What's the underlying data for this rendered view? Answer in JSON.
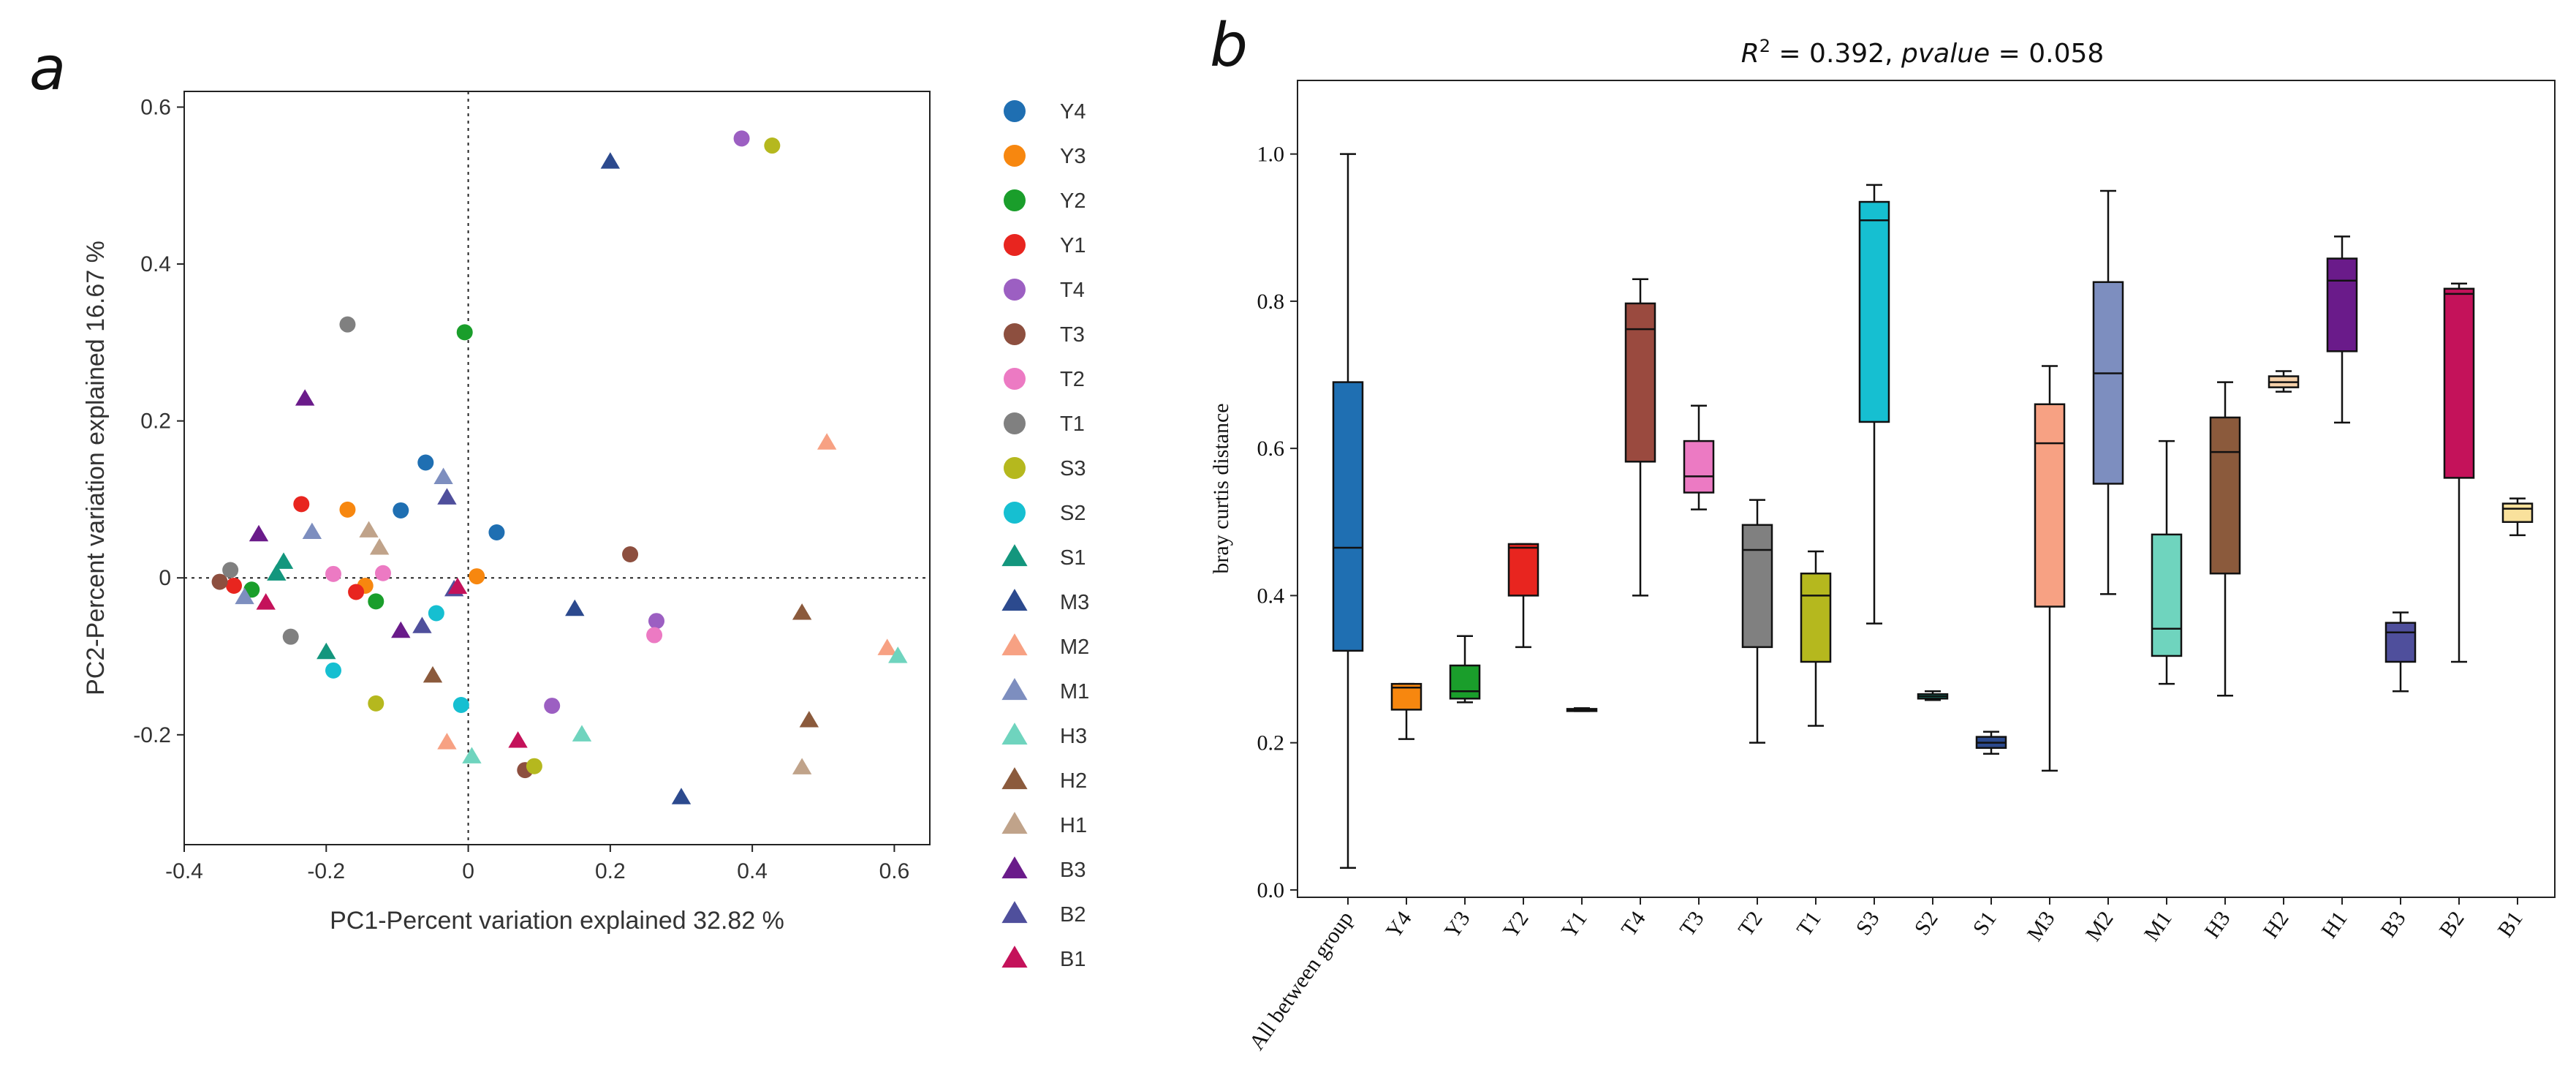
{
  "panel_labels": {
    "a": "a",
    "b": "b"
  },
  "chart_data": [
    {
      "type": "scatter",
      "panel": "a",
      "xlabel": "PC1-Percent variation explained 32.82 %",
      "ylabel": "PC2-Percent variation explained 16.67 %",
      "xlim": [
        -0.4,
        0.65
      ],
      "ylim": [
        -0.34,
        0.62
      ],
      "xticks": [
        "-0.4",
        "-0.2",
        "0",
        "0.2",
        "0.4",
        "0.6"
      ],
      "xtick_values": [
        -0.4,
        -0.2,
        0,
        0.2,
        0.4,
        0.6
      ],
      "yticks": [
        "-0.2",
        "0",
        "0.2",
        "0.4",
        "0.6"
      ],
      "ytick_values": [
        -0.2,
        0,
        0.2,
        0.4,
        0.6
      ],
      "reference_lines": {
        "x": 0,
        "y": 0,
        "style": "dotted"
      },
      "legend_position": "right",
      "series": [
        {
          "name": "Y4",
          "marker": "circle",
          "color": "#1f6fb2",
          "points": [
            [
              -0.06,
              0.147
            ],
            [
              -0.095,
              0.086
            ],
            [
              0.04,
              0.058
            ]
          ]
        },
        {
          "name": "Y3",
          "marker": "circle",
          "color": "#f7870f",
          "points": [
            [
              -0.17,
              0.087
            ],
            [
              -0.145,
              -0.01
            ],
            [
              0.012,
              0.002
            ]
          ]
        },
        {
          "name": "Y2",
          "marker": "circle",
          "color": "#1a9e2b",
          "points": [
            [
              -0.005,
              0.313
            ],
            [
              -0.305,
              -0.015
            ],
            [
              -0.13,
              -0.03
            ]
          ]
        },
        {
          "name": "Y1",
          "marker": "circle",
          "color": "#e8251f",
          "points": [
            [
              -0.235,
              0.094
            ],
            [
              -0.33,
              -0.01
            ],
            [
              -0.158,
              -0.018
            ]
          ]
        },
        {
          "name": "T4",
          "marker": "circle",
          "color": "#9c5fc2",
          "points": [
            [
              0.385,
              0.56
            ],
            [
              0.118,
              -0.163
            ],
            [
              0.265,
              -0.055
            ]
          ]
        },
        {
          "name": "T3",
          "marker": "circle",
          "color": "#8d4f3f",
          "points": [
            [
              0.228,
              0.03
            ],
            [
              -0.35,
              -0.005
            ],
            [
              0.08,
              -0.245
            ]
          ]
        },
        {
          "name": "T2",
          "marker": "circle",
          "color": "#ec7ac3",
          "points": [
            [
              -0.19,
              0.005
            ],
            [
              -0.12,
              0.006
            ],
            [
              0.262,
              -0.073
            ]
          ]
        },
        {
          "name": "T1",
          "marker": "circle",
          "color": "#808080",
          "points": [
            [
              -0.17,
              0.323
            ],
            [
              -0.335,
              0.01
            ],
            [
              -0.25,
              -0.075
            ]
          ]
        },
        {
          "name": "S3",
          "marker": "circle",
          "color": "#b5b81e",
          "points": [
            [
              0.428,
              0.551
            ],
            [
              0.093,
              -0.24
            ],
            [
              -0.13,
              -0.16
            ]
          ]
        },
        {
          "name": "S2",
          "marker": "circle",
          "color": "#16bfd1",
          "points": [
            [
              -0.045,
              -0.045
            ],
            [
              -0.19,
              -0.118
            ],
            [
              -0.01,
              -0.162
            ]
          ]
        },
        {
          "name": "S1",
          "marker": "triangle",
          "color": "#13967d",
          "points": [
            [
              -0.26,
              0.02
            ],
            [
              -0.27,
              0.005
            ],
            [
              -0.2,
              -0.095
            ]
          ]
        },
        {
          "name": "M3",
          "marker": "triangle",
          "color": "#2c4a8e",
          "points": [
            [
              0.2,
              0.53
            ],
            [
              0.3,
              -0.28
            ],
            [
              0.15,
              -0.04
            ]
          ]
        },
        {
          "name": "M2",
          "marker": "triangle",
          "color": "#f7a183",
          "points": [
            [
              0.505,
              0.172
            ],
            [
              -0.03,
              -0.21
            ],
            [
              0.59,
              -0.09
            ]
          ]
        },
        {
          "name": "M1",
          "marker": "triangle",
          "color": "#7d8ebf",
          "points": [
            [
              -0.035,
              0.128
            ],
            [
              -0.315,
              -0.025
            ],
            [
              -0.22,
              0.058
            ]
          ]
        },
        {
          "name": "H3",
          "marker": "triangle",
          "color": "#6fd4be",
          "points": [
            [
              0.605,
              -0.1
            ],
            [
              0.16,
              -0.2
            ],
            [
              0.005,
              -0.228
            ]
          ]
        },
        {
          "name": "H2",
          "marker": "triangle",
          "color": "#8b5a3c",
          "points": [
            [
              0.47,
              -0.045
            ],
            [
              0.48,
              -0.182
            ],
            [
              -0.05,
              -0.125
            ]
          ]
        },
        {
          "name": "H1",
          "marker": "triangle",
          "color": "#c0a38a",
          "points": [
            [
              -0.14,
              0.06
            ],
            [
              -0.125,
              0.038
            ],
            [
              0.47,
              -0.242
            ]
          ]
        },
        {
          "name": "B3",
          "marker": "triangle",
          "color": "#6a1b8a",
          "points": [
            [
              -0.23,
              0.228
            ],
            [
              -0.295,
              0.055
            ],
            [
              -0.095,
              -0.068
            ]
          ]
        },
        {
          "name": "B2",
          "marker": "triangle",
          "color": "#4f4f9c",
          "points": [
            [
              -0.03,
              0.102
            ],
            [
              -0.065,
              -0.062
            ],
            [
              -0.02,
              -0.015
            ]
          ]
        },
        {
          "name": "B1",
          "marker": "triangle",
          "color": "#c4125a",
          "points": [
            [
              -0.285,
              -0.032
            ],
            [
              -0.015,
              -0.012
            ],
            [
              0.07,
              -0.208
            ]
          ]
        }
      ]
    },
    {
      "type": "box",
      "panel": "b",
      "title": "R² = 0.392, pvalue = 0.058",
      "title_parts": {
        "r": "R",
        "sup": "2",
        "rest": " = 0.392, ",
        "pvalue": "pvalue",
        "tail": " = 0.058"
      },
      "xlabel": "",
      "ylabel": "bray curtis distance",
      "ylim": [
        -0.01,
        1.1
      ],
      "yticks": [
        "0.0",
        "0.2",
        "0.4",
        "0.6",
        "0.8",
        "1.0"
      ],
      "ytick_values": [
        0.0,
        0.2,
        0.4,
        0.6,
        0.8,
        1.0
      ],
      "categories": [
        "All between group",
        "Y4",
        "Y3",
        "Y2",
        "Y1",
        "T4",
        "T3",
        "T2",
        "T1",
        "S3",
        "S2",
        "S1",
        "M3",
        "M2",
        "M1",
        "H3",
        "H2",
        "H1",
        "B3",
        "B2",
        "B1"
      ],
      "boxes": [
        {
          "label": "All between group",
          "color": "#1f6fb2",
          "whislo": 0.03,
          "q1": 0.325,
          "med": 0.465,
          "q3": 0.69,
          "whishi": 1.0
        },
        {
          "label": "Y4",
          "color": "#f7870f",
          "whislo": 0.205,
          "q1": 0.245,
          "med": 0.275,
          "q3": 0.28,
          "whishi": 0.28
        },
        {
          "label": "Y3",
          "color": "#1a9e2b",
          "whislo": 0.255,
          "q1": 0.26,
          "med": 0.27,
          "q3": 0.305,
          "whishi": 0.345
        },
        {
          "label": "Y2",
          "color": "#e8251f",
          "whislo": 0.33,
          "q1": 0.4,
          "med": 0.465,
          "q3": 0.47,
          "whishi": 0.47
        },
        {
          "label": "Y1",
          "color": "#555555",
          "whislo": 0.243,
          "q1": 0.244,
          "med": 0.245,
          "q3": 0.246,
          "whishi": 0.247
        },
        {
          "label": "T4",
          "color": "#9a4a3f",
          "whislo": 0.4,
          "q1": 0.582,
          "med": 0.762,
          "q3": 0.797,
          "whishi": 0.83
        },
        {
          "label": "T3",
          "color": "#ec7ac3",
          "whislo": 0.517,
          "q1": 0.54,
          "med": 0.562,
          "q3": 0.61,
          "whishi": 0.658
        },
        {
          "label": "T2",
          "color": "#808080",
          "whislo": 0.2,
          "q1": 0.33,
          "med": 0.462,
          "q3": 0.496,
          "whishi": 0.53
        },
        {
          "label": "T1",
          "color": "#b5b81e",
          "whislo": 0.223,
          "q1": 0.31,
          "med": 0.4,
          "q3": 0.43,
          "whishi": 0.46
        },
        {
          "label": "S3",
          "color": "#16bfd1",
          "whislo": 0.362,
          "q1": 0.636,
          "med": 0.91,
          "q3": 0.935,
          "whishi": 0.958
        },
        {
          "label": "S2",
          "color": "#13967d",
          "whislo": 0.258,
          "q1": 0.26,
          "med": 0.263,
          "q3": 0.266,
          "whishi": 0.27
        },
        {
          "label": "S1",
          "color": "#2c4a8e",
          "whislo": 0.185,
          "q1": 0.193,
          "med": 0.2,
          "q3": 0.208,
          "whishi": 0.215
        },
        {
          "label": "M3",
          "color": "#f7a183",
          "whislo": 0.162,
          "q1": 0.385,
          "med": 0.607,
          "q3": 0.66,
          "whishi": 0.712
        },
        {
          "label": "M2",
          "color": "#7d8ebf",
          "whislo": 0.402,
          "q1": 0.552,
          "med": 0.702,
          "q3": 0.826,
          "whishi": 0.95
        },
        {
          "label": "M1",
          "color": "#6fd4be",
          "whislo": 0.28,
          "q1": 0.318,
          "med": 0.355,
          "q3": 0.483,
          "whishi": 0.61
        },
        {
          "label": "H3",
          "color": "#8b5a3c",
          "whislo": 0.264,
          "q1": 0.43,
          "med": 0.595,
          "q3": 0.642,
          "whishi": 0.69
        },
        {
          "label": "H2",
          "color": "#f5d0a9",
          "whislo": 0.677,
          "q1": 0.683,
          "med": 0.69,
          "q3": 0.698,
          "whishi": 0.705
        },
        {
          "label": "H1",
          "color": "#6a1b8a",
          "whislo": 0.635,
          "q1": 0.732,
          "med": 0.828,
          "q3": 0.858,
          "whishi": 0.888
        },
        {
          "label": "B3",
          "color": "#4f4f9c",
          "whislo": 0.27,
          "q1": 0.31,
          "med": 0.35,
          "q3": 0.363,
          "whishi": 0.377
        },
        {
          "label": "B2",
          "color": "#c4125a",
          "whislo": 0.31,
          "q1": 0.56,
          "med": 0.81,
          "q3": 0.817,
          "whishi": 0.824
        },
        {
          "label": "B1",
          "color": "#f9e19c",
          "whislo": 0.482,
          "q1": 0.5,
          "med": 0.518,
          "q3": 0.525,
          "whishi": 0.532
        }
      ]
    }
  ]
}
